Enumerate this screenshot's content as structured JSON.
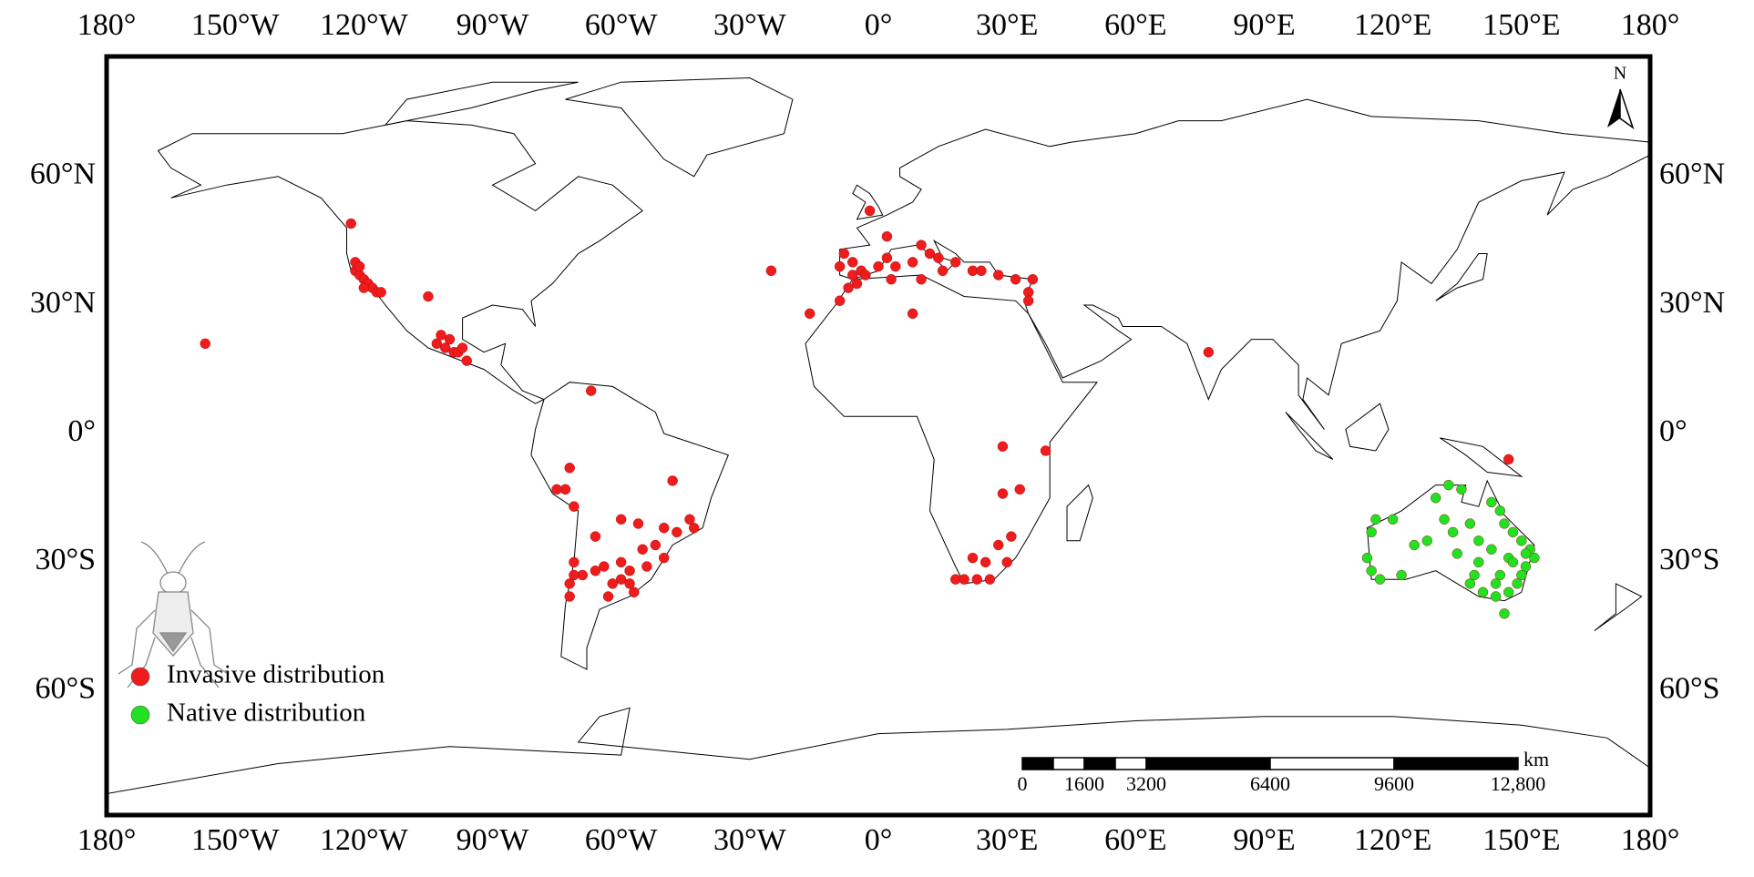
{
  "map": {
    "xlim": [
      -180,
      180
    ],
    "ylim": [
      -89,
      88
    ],
    "xticks": [
      {
        "value": -180,
        "label": "180°"
      },
      {
        "value": -150,
        "label": "150°W"
      },
      {
        "value": -120,
        "label": "120°W"
      },
      {
        "value": -90,
        "label": "90°W"
      },
      {
        "value": -60,
        "label": "60°W"
      },
      {
        "value": -30,
        "label": "30°W"
      },
      {
        "value": 0,
        "label": "0°"
      },
      {
        "value": 30,
        "label": "30°E"
      },
      {
        "value": 60,
        "label": "60°E"
      },
      {
        "value": 90,
        "label": "90°E"
      },
      {
        "value": 120,
        "label": "120°E"
      },
      {
        "value": 150,
        "label": "150°E"
      },
      {
        "value": 180,
        "label": "180°"
      }
    ],
    "yticks": [
      {
        "value": 60,
        "label": "60°N"
      },
      {
        "value": 30,
        "label": "30°N"
      },
      {
        "value": 0,
        "label": "0°"
      },
      {
        "value": -30,
        "label": "30°S"
      },
      {
        "value": -60,
        "label": "60°S"
      }
    ],
    "series": [
      {
        "name": "Invasive distribution",
        "color": "#ee1c1c",
        "lon": [
          -123,
          -122,
          -121,
          -120,
          -119,
          -118,
          -117,
          -122,
          -121,
          -120,
          -116,
          -105,
          -103,
          -101,
          -99,
          -98,
          -100,
          -97,
          -96,
          -102,
          -157,
          -67,
          -73,
          -72,
          -75,
          -71,
          -48,
          -60,
          -56,
          -50,
          -47,
          -44,
          -43,
          -52,
          -55,
          -60,
          -58,
          -60,
          -58,
          -62,
          -64,
          -66,
          -69,
          -71,
          -72,
          -72,
          -71,
          -57,
          -63,
          -54,
          -50,
          -66,
          -25,
          -16,
          -2,
          2,
          -8,
          -6,
          -4,
          -9,
          -3,
          -6,
          0,
          2,
          4,
          8,
          12,
          14,
          10,
          15,
          18,
          22,
          24,
          28,
          32,
          35,
          36,
          35,
          -7,
          -9,
          -5,
          3,
          10,
          8,
          77,
          29,
          39,
          29,
          33,
          31,
          28,
          25,
          18,
          20,
          23,
          26,
          30,
          22,
          147
        ],
        "lat": [
          49,
          38,
          37,
          36,
          35,
          34,
          33,
          40,
          39,
          34,
          33,
          32,
          21,
          20,
          19,
          19,
          22,
          20,
          17,
          23,
          21,
          10,
          -13,
          -8,
          -13,
          -17,
          -11,
          -20,
          -21,
          -22,
          -23,
          -20,
          -22,
          -26,
          -27,
          -30,
          -32,
          -34,
          -35,
          -35,
          -31,
          -32,
          -33,
          -33,
          -35,
          -38,
          -30,
          -37,
          -38,
          -31,
          -29,
          -24,
          38,
          28,
          52,
          46,
          42,
          40,
          38,
          39,
          37,
          37,
          39,
          41,
          39,
          40,
          42,
          41,
          44,
          38,
          40,
          38,
          38,
          37,
          36,
          33,
          36,
          31,
          34,
          31,
          35,
          36,
          36,
          28,
          19,
          -3,
          -4,
          -14,
          -13,
          -24,
          -26,
          -30,
          -34,
          -34,
          -34,
          -34,
          -30,
          -29,
          -6
        ]
      },
      {
        "name": "Native distribution",
        "color": "#22e022",
        "lon": [
          115,
          114,
          115,
          117,
          122,
          125,
          130,
          133,
          136,
          132,
          134,
          138,
          135,
          140,
          143,
          145,
          146,
          148,
          150,
          152,
          153,
          151,
          150,
          149,
          147,
          144,
          141,
          138,
          145,
          147,
          143,
          140,
          146,
          128,
          120,
          116,
          139,
          151,
          148,
          144
        ],
        "lat": [
          -23,
          -29,
          -32,
          -34,
          -33,
          -26,
          -15,
          -12,
          -13,
          -20,
          -23,
          -21,
          -28,
          -30,
          -16,
          -18,
          -21,
          -23,
          -25,
          -27,
          -29,
          -31,
          -33,
          -35,
          -37,
          -38,
          -37,
          -35,
          -33,
          -29,
          -27,
          -25,
          -42,
          -25,
          -20,
          -20,
          -33,
          -28,
          -30,
          -35
        ]
      }
    ],
    "scale_bar": {
      "unit": "km",
      "ticks": [
        0,
        1600,
        3200,
        6400,
        9600,
        {
          "value": 12800,
          "label": "12,800"
        }
      ]
    },
    "north": "N"
  }
}
